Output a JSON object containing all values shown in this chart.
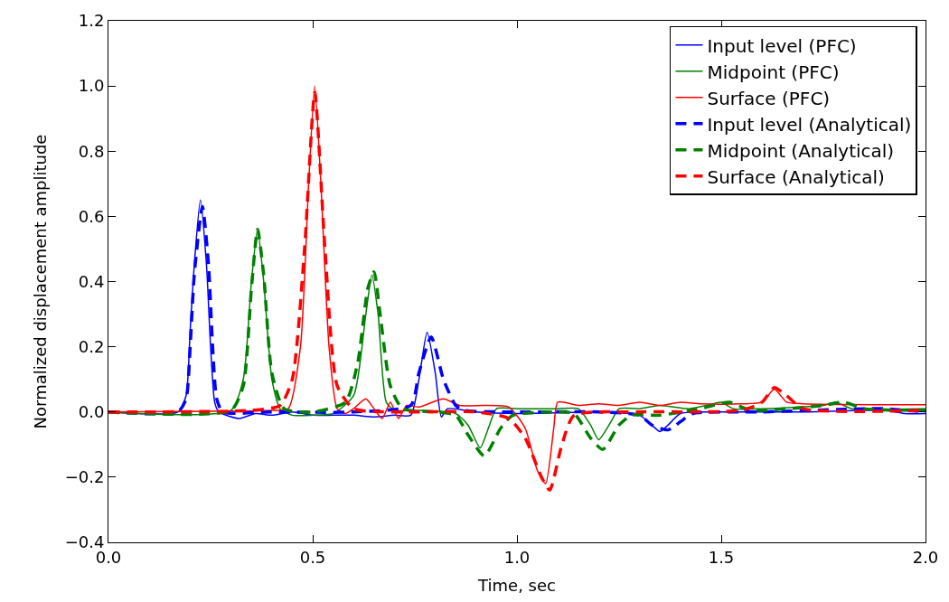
{
  "chart_data": {
    "type": "line",
    "xlabel": "Time, sec",
    "ylabel": "Normalized displacement amplitude",
    "xlim": [
      0,
      2
    ],
    "ylim": [
      -0.4,
      1.2
    ],
    "xticks": [
      {
        "value": 0,
        "label": "0.0"
      },
      {
        "value": 0.5,
        "label": "0.5"
      },
      {
        "value": 1,
        "label": "1.0"
      },
      {
        "value": 1.5,
        "label": "1.5"
      },
      {
        "value": 2,
        "label": "2.0"
      }
    ],
    "yticks": [
      {
        "value": -0.4,
        "label": "−0.4"
      },
      {
        "value": -0.2,
        "label": "−0.2"
      },
      {
        "value": 0,
        "label": "0.0"
      },
      {
        "value": 0.2,
        "label": "0.2"
      },
      {
        "value": 0.4,
        "label": "0.4"
      },
      {
        "value": 0.6,
        "label": "0.6"
      },
      {
        "value": 0.8,
        "label": "0.8"
      },
      {
        "value": 1,
        "label": "1.0"
      },
      {
        "value": 1.2,
        "label": "1.2"
      }
    ],
    "legend": "top right",
    "marker": "none",
    "series": [
      {
        "name": "Input level (PFC)",
        "color": "#0000ff",
        "line_style": "solid",
        "x": [
          0,
          0.17,
          0.19,
          0.2,
          0.21,
          0.225,
          0.24,
          0.25,
          0.26,
          0.27,
          0.32,
          0.36,
          0.4,
          0.45,
          0.5,
          0.55,
          0.6,
          0.65,
          0.7,
          0.74,
          0.76,
          0.78,
          0.8,
          0.815,
          0.83,
          0.9,
          1.0,
          1.2,
          1.3,
          1.33,
          1.35,
          1.37,
          1.4,
          1.5,
          1.7,
          1.9,
          1.95,
          2.0
        ],
        "values": [
          0,
          0,
          0.05,
          0.25,
          0.45,
          0.65,
          0.45,
          0.2,
          0.03,
          0,
          -0.02,
          -0.005,
          -0.01,
          0,
          -0.01,
          -0.01,
          -0.01,
          -0.015,
          -0.01,
          -0.01,
          0.1,
          0.245,
          0.12,
          -0.015,
          0.01,
          0,
          -0.005,
          0,
          -0.01,
          -0.04,
          -0.06,
          -0.04,
          -0.005,
          0,
          0,
          0.005,
          -0.005,
          -0.005
        ]
      },
      {
        "name": "Midpoint (PFC)",
        "color": "#008000",
        "line_style": "solid",
        "x": [
          0,
          0.3,
          0.33,
          0.35,
          0.365,
          0.38,
          0.4,
          0.42,
          0.45,
          0.5,
          0.55,
          0.6,
          0.63,
          0.645,
          0.66,
          0.68,
          0.7,
          0.75,
          0.85,
          0.88,
          0.91,
          0.93,
          0.95,
          1.0,
          1.1,
          1.15,
          1.18,
          1.2,
          1.23,
          1.25,
          1.3,
          1.35,
          1.42,
          1.48,
          1.5,
          1.53,
          1.6,
          1.75,
          1.78,
          1.82,
          2.0
        ],
        "values": [
          0,
          0.005,
          0.1,
          0.4,
          0.56,
          0.4,
          0.1,
          0.01,
          -0.01,
          -0.01,
          -0.005,
          0.05,
          0.3,
          0.42,
          0.3,
          0.03,
          0.005,
          0.005,
          -0.005,
          -0.04,
          -0.11,
          -0.05,
          0.01,
          0.01,
          0.01,
          0.01,
          -0.04,
          -0.085,
          -0.03,
          0.01,
          0.01,
          0.02,
          0.01,
          0.025,
          0.03,
          0.01,
          0.01,
          0.02,
          0.03,
          0.01,
          0.01
        ]
      },
      {
        "name": "Surface (PFC)",
        "color": "#ff0000",
        "line_style": "solid",
        "x": [
          0,
          0.4,
          0.44,
          0.47,
          0.49,
          0.505,
          0.52,
          0.54,
          0.56,
          0.58,
          0.6,
          0.63,
          0.65,
          0.67,
          0.69,
          0.71,
          0.73,
          0.76,
          0.82,
          0.86,
          0.92,
          0.98,
          1.02,
          1.05,
          1.07,
          1.09,
          1.1,
          1.15,
          1.2,
          1.25,
          1.3,
          1.35,
          1.4,
          1.45,
          1.55,
          1.6,
          1.63,
          1.66,
          1.7,
          2.0
        ],
        "values": [
          0,
          0.005,
          0.01,
          0.2,
          0.7,
          1.0,
          0.7,
          0.2,
          0.01,
          -0.005,
          0.01,
          0.04,
          0.01,
          -0.02,
          0.03,
          -0.02,
          0.02,
          0.015,
          0.04,
          0.02,
          0.02,
          0.015,
          -0.05,
          -0.18,
          -0.22,
          -0.05,
          0.03,
          0.02,
          0.025,
          0.02,
          0.03,
          0.02,
          0.03,
          0.025,
          0.025,
          0.03,
          0.07,
          0.03,
          0.025,
          0.022
        ]
      },
      {
        "name": "Input level (Analytical)",
        "color": "#0000ff",
        "line_style": "dashed",
        "x": [
          0,
          0.17,
          0.19,
          0.2,
          0.21,
          0.23,
          0.245,
          0.255,
          0.265,
          0.28,
          0.4,
          0.6,
          0.74,
          0.76,
          0.79,
          0.82,
          0.85,
          0.87,
          1.0,
          1.2,
          1.3,
          1.33,
          1.37,
          1.4,
          1.43,
          1.6,
          1.85,
          1.9,
          2.0
        ],
        "values": [
          0,
          0,
          0.04,
          0.2,
          0.42,
          0.63,
          0.45,
          0.2,
          0.04,
          0,
          0,
          0,
          0.02,
          0.12,
          0.23,
          0.1,
          0.02,
          0.005,
          0,
          0,
          -0.01,
          -0.04,
          -0.055,
          -0.03,
          -0.005,
          0,
          0.01,
          0.01,
          0
        ]
      },
      {
        "name": "Midpoint (Analytical)",
        "color": "#008000",
        "line_style": "dashed",
        "x": [
          0,
          0.3,
          0.33,
          0.35,
          0.365,
          0.38,
          0.4,
          0.43,
          0.5,
          0.58,
          0.61,
          0.635,
          0.65,
          0.665,
          0.69,
          0.72,
          0.8,
          0.85,
          0.88,
          0.92,
          0.96,
          0.99,
          1.1,
          1.14,
          1.18,
          1.21,
          1.25,
          1.28,
          1.35,
          1.45,
          1.52,
          1.56,
          1.6,
          1.75,
          1.8,
          1.85,
          2.0
        ],
        "values": [
          0,
          0.005,
          0.08,
          0.38,
          0.56,
          0.42,
          0.12,
          0.01,
          0,
          0.03,
          0.15,
          0.38,
          0.43,
          0.3,
          0.08,
          0.01,
          0,
          -0.01,
          -0.07,
          -0.135,
          -0.05,
          -0.01,
          0,
          -0.005,
          -0.08,
          -0.115,
          -0.04,
          -0.01,
          -0.01,
          0.01,
          0.03,
          0.01,
          0.005,
          0.02,
          0.03,
          0.01,
          0.005
        ]
      },
      {
        "name": "Surface (Analytical)",
        "color": "#ff0000",
        "line_style": "dashed",
        "x": [
          0,
          0.35,
          0.42,
          0.45,
          0.48,
          0.505,
          0.53,
          0.56,
          0.6,
          0.7,
          0.9,
          0.98,
          1.02,
          1.06,
          1.08,
          1.11,
          1.14,
          1.3,
          1.55,
          1.6,
          1.63,
          1.66,
          1.7,
          2.0
        ],
        "values": [
          0,
          0.005,
          0.02,
          0.1,
          0.5,
          0.98,
          0.5,
          0.08,
          0.01,
          0,
          0,
          -0.02,
          -0.08,
          -0.2,
          -0.24,
          -0.1,
          -0.01,
          0,
          0.005,
          0.03,
          0.075,
          0.05,
          0.01,
          0.005
        ]
      }
    ]
  }
}
